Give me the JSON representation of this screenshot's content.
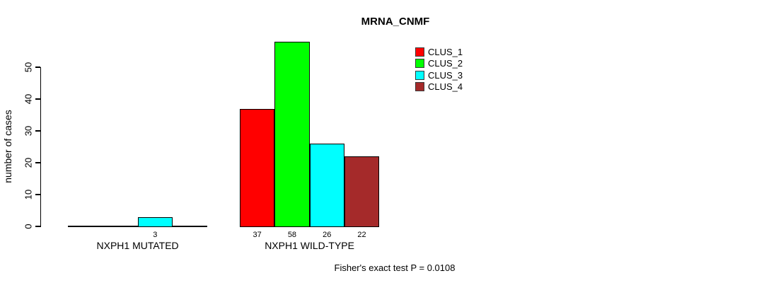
{
  "chart_data": {
    "type": "bar",
    "title": "MRNA_CNMF",
    "ylabel": "number of cases",
    "xlabel": "",
    "ylim": [
      0,
      58
    ],
    "yticks": [
      0,
      10,
      20,
      30,
      40,
      50
    ],
    "grid": false,
    "legend_position": "top-right",
    "categories": [
      "NXPH1 MUTATED",
      "NXPH1 WILD-TYPE"
    ],
    "series": [
      {
        "name": "CLUS_1",
        "color": "#FF0000",
        "values": [
          0,
          37
        ]
      },
      {
        "name": "CLUS_2",
        "color": "#00FF00",
        "values": [
          0,
          58
        ]
      },
      {
        "name": "CLUS_3",
        "color": "#00FFFF",
        "values": [
          3,
          26
        ]
      },
      {
        "name": "CLUS_4",
        "color": "#A52A2A",
        "values": [
          0,
          22
        ]
      }
    ],
    "bar_value_labels": [
      [
        "",
        "",
        "3",
        ""
      ],
      [
        "37",
        "58",
        "26",
        "22"
      ]
    ],
    "annotation": "Fisher's exact test P = 0.0108"
  }
}
